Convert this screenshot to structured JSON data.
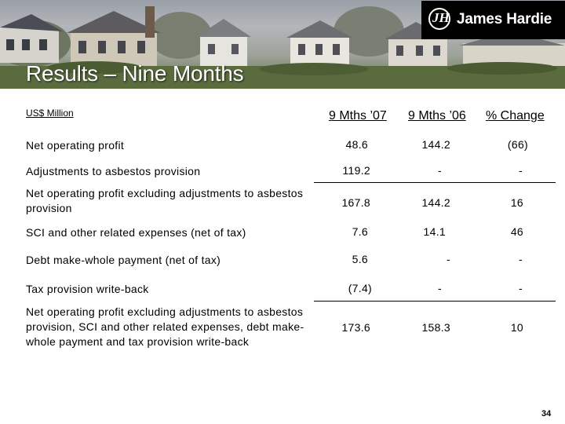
{
  "brand": {
    "name": "James Hardie",
    "mark": "JH"
  },
  "title": "Results – Nine Months",
  "units_label": "US$ Million",
  "columns": [
    "9 Mths ’07",
    "9 Mths ’06",
    "% Change"
  ],
  "rows": [
    {
      "label": "Net operating profit",
      "values": [
        "48.6",
        "144.2",
        "(66)"
      ]
    },
    {
      "label": "Adjustments to asbestos provision",
      "values": [
        "119.2",
        "-",
        "-"
      ]
    },
    {
      "label": "Net operating profit excluding adjustments to asbestos provision",
      "values": [
        "167.8",
        "144.2",
        "16"
      ]
    },
    {
      "label": "SCI and other related expenses (net of tax)",
      "values": [
        "7.6",
        "14.1",
        "46"
      ]
    },
    {
      "label": "Debt make-whole payment (net of tax)",
      "values": [
        "5.6",
        "-",
        "-"
      ]
    },
    {
      "label": "Tax provision write-back",
      "values": [
        "(7.4)",
        "-",
        "-"
      ]
    },
    {
      "label": "Net operating profit excluding adjustments to asbestos provision, SCI and other related expenses, debt make-whole payment and tax provision write-back",
      "values": [
        "173.6",
        "158.3",
        "10"
      ]
    }
  ],
  "page_number": "34"
}
